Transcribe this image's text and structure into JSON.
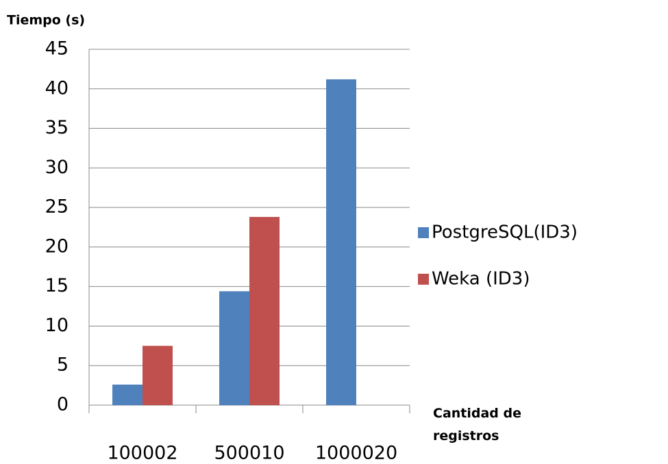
{
  "chart_data": {
    "type": "bar",
    "y_label": "Tiempo (s)",
    "x_label": "Cantidad de registros",
    "categories": [
      "100002",
      "500010",
      "1000020"
    ],
    "series": [
      {
        "name": "PostgreSQL(ID3)",
        "color": "#4f81bd",
        "values": [
          2.6,
          14.4,
          41.2
        ]
      },
      {
        "name": "Weka (ID3)",
        "color": "#c0504d",
        "values": [
          7.5,
          23.8,
          null
        ]
      }
    ],
    "ylim": [
      0,
      45
    ],
    "yticks": [
      0,
      5,
      10,
      15,
      20,
      25,
      30,
      35,
      40,
      45
    ],
    "grid": true,
    "legend": "right"
  }
}
